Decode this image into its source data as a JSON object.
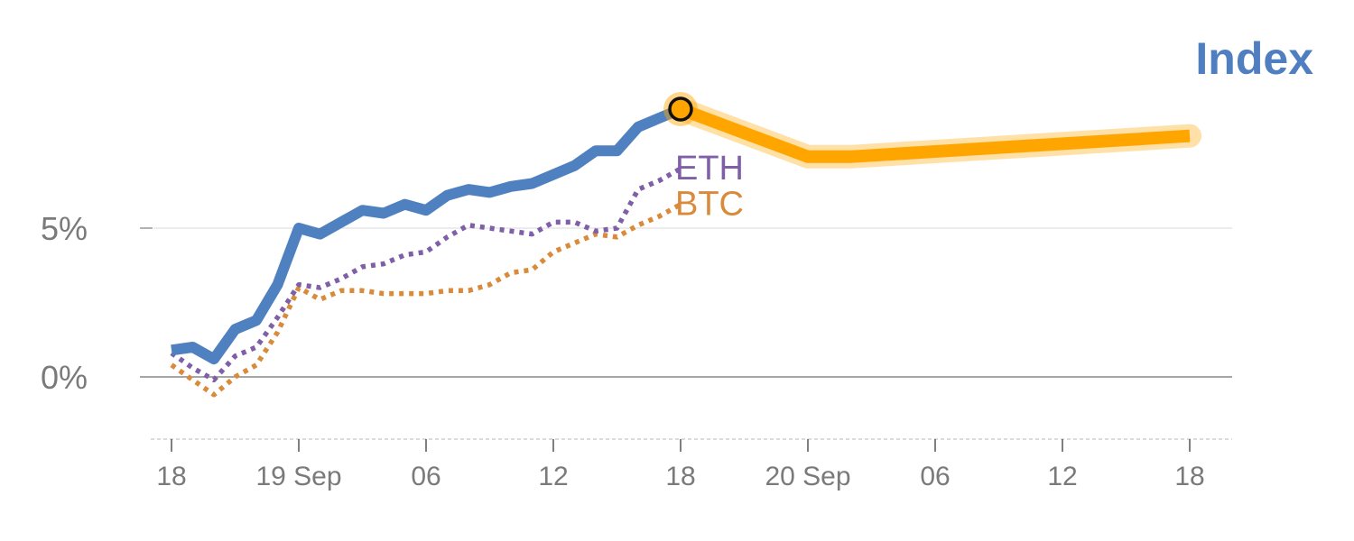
{
  "chart_data": {
    "type": "line",
    "title": "Index",
    "x_tick_labels": [
      "18",
      "19 Sep",
      "06",
      "12",
      "18",
      "20 Sep",
      "06",
      "12",
      "18"
    ],
    "x_tick_hours": [
      -6,
      0,
      6,
      12,
      18,
      24,
      30,
      36,
      42
    ],
    "xlim_hours": [
      -7,
      44
    ],
    "y_tick_labels": [
      "0%",
      "5%"
    ],
    "y_tick_values": [
      0,
      5
    ],
    "ylim": [
      -2.1,
      12.8
    ],
    "grid": "horizontal",
    "colors": {
      "index": "#4f81c0",
      "forecast": "#ffa500",
      "eth": "#7f5fa8",
      "btc": "#d98a3a",
      "zero_line": "#888888",
      "grid_line": "#e6e6e6",
      "title": "#4f7fc0",
      "tick_text": "#7a7a7a"
    },
    "series": [
      {
        "name": "Index",
        "style": "solid",
        "x_hours": [
          -6,
          -5,
          -4,
          -3,
          -2,
          -1,
          0,
          1,
          2,
          3,
          4,
          5,
          6,
          7,
          8,
          9,
          10,
          11,
          12,
          13,
          14,
          15,
          16,
          17,
          18
        ],
        "values": [
          0.9,
          1.0,
          0.6,
          1.6,
          1.9,
          3.1,
          5.0,
          4.8,
          5.2,
          5.6,
          5.5,
          5.8,
          5.6,
          6.1,
          6.3,
          6.2,
          6.4,
          6.5,
          6.8,
          7.1,
          7.6,
          7.6,
          8.4,
          8.7,
          9.0
        ]
      },
      {
        "name": "ETH",
        "style": "dotted",
        "x_hours": [
          -6,
          -5,
          -4,
          -3,
          -2,
          -1,
          0,
          1,
          2,
          3,
          4,
          5,
          6,
          7,
          8,
          9,
          10,
          11,
          12,
          13,
          14,
          15,
          16,
          17,
          18
        ],
        "values": [
          0.8,
          0.3,
          -0.1,
          0.7,
          1.0,
          2.0,
          3.1,
          3.0,
          3.3,
          3.7,
          3.8,
          4.1,
          4.2,
          4.7,
          5.1,
          5.0,
          4.9,
          4.8,
          5.2,
          5.2,
          4.9,
          5.0,
          6.3,
          6.6,
          7.0
        ]
      },
      {
        "name": "BTC",
        "style": "dotted",
        "x_hours": [
          -6,
          -5,
          -4,
          -3,
          -2,
          -1,
          0,
          1,
          2,
          3,
          4,
          5,
          6,
          7,
          8,
          9,
          10,
          11,
          12,
          13,
          14,
          15,
          16,
          17,
          18
        ],
        "values": [
          0.4,
          -0.1,
          -0.6,
          0.0,
          0.4,
          1.5,
          3.0,
          2.6,
          2.9,
          2.9,
          2.8,
          2.8,
          2.8,
          2.9,
          2.9,
          3.1,
          3.5,
          3.6,
          4.2,
          4.5,
          4.8,
          4.7,
          5.1,
          5.4,
          5.8
        ]
      },
      {
        "name": "Index forecast",
        "style": "band",
        "x_hours": [
          18,
          24,
          26,
          42
        ],
        "values": [
          9.0,
          7.4,
          7.4,
          8.1
        ]
      }
    ],
    "annotations": [
      {
        "label": "ETH",
        "series": "ETH"
      },
      {
        "label": "BTC",
        "series": "BTC"
      }
    ],
    "marker": {
      "x_hours": 18,
      "value": 9.0
    }
  }
}
